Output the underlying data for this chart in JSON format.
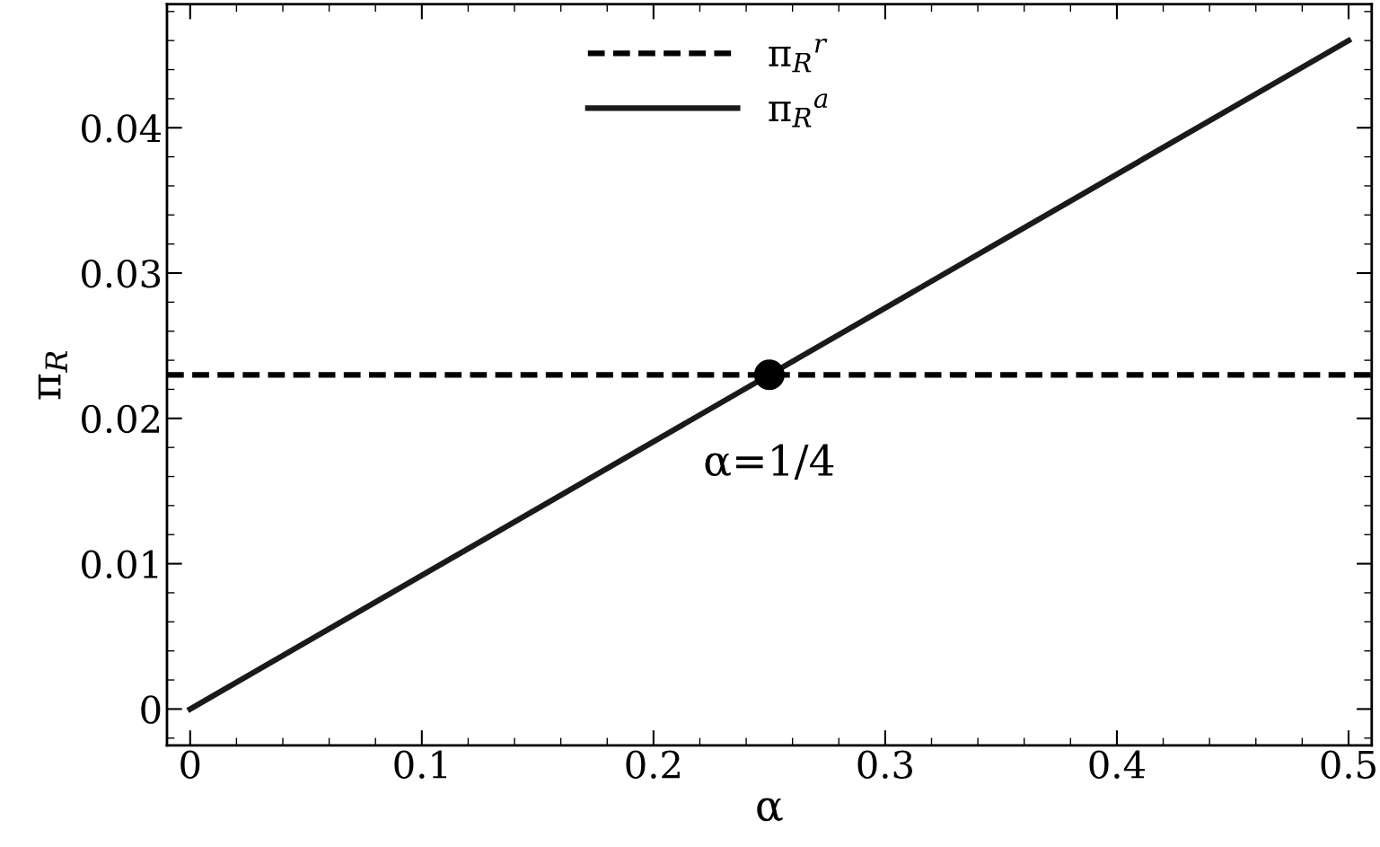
{
  "chart_data": {
    "type": "line",
    "xlabel": "α",
    "ylabel": "π$_{R}$",
    "series": [
      {
        "name": "π$_{R}$$^{r}$",
        "type": "line",
        "color": "#000000",
        "line_style": "dashed",
        "marker": "none",
        "x": [
          -0.01,
          0.51
        ],
        "values": [
          0.023,
          0.023
        ]
      },
      {
        "name": "π$_{R}$$^{a}$",
        "type": "line",
        "color": "#1a1a1a",
        "line_style": "solid",
        "marker": "none",
        "x": [
          0,
          0.5
        ],
        "values": [
          0,
          0.046
        ]
      },
      {
        "type": "scatter",
        "color": "#000000",
        "marker": "circle",
        "x": [
          0.25
        ],
        "values": [
          0.023
        ]
      }
    ],
    "annotations": [
      {
        "text": "α=1/4",
        "x": 0.25,
        "y": 0.023
      }
    ],
    "xlim": [
      -0.01,
      0.51
    ],
    "ylim": [
      -0.0025,
      0.0485
    ],
    "xticks": [
      0,
      0.1,
      0.2,
      0.3,
      0.4,
      0.5
    ],
    "yticks": [
      0,
      0.01,
      0.02,
      0.03,
      0.04
    ],
    "grid": false,
    "legend": "top"
  }
}
